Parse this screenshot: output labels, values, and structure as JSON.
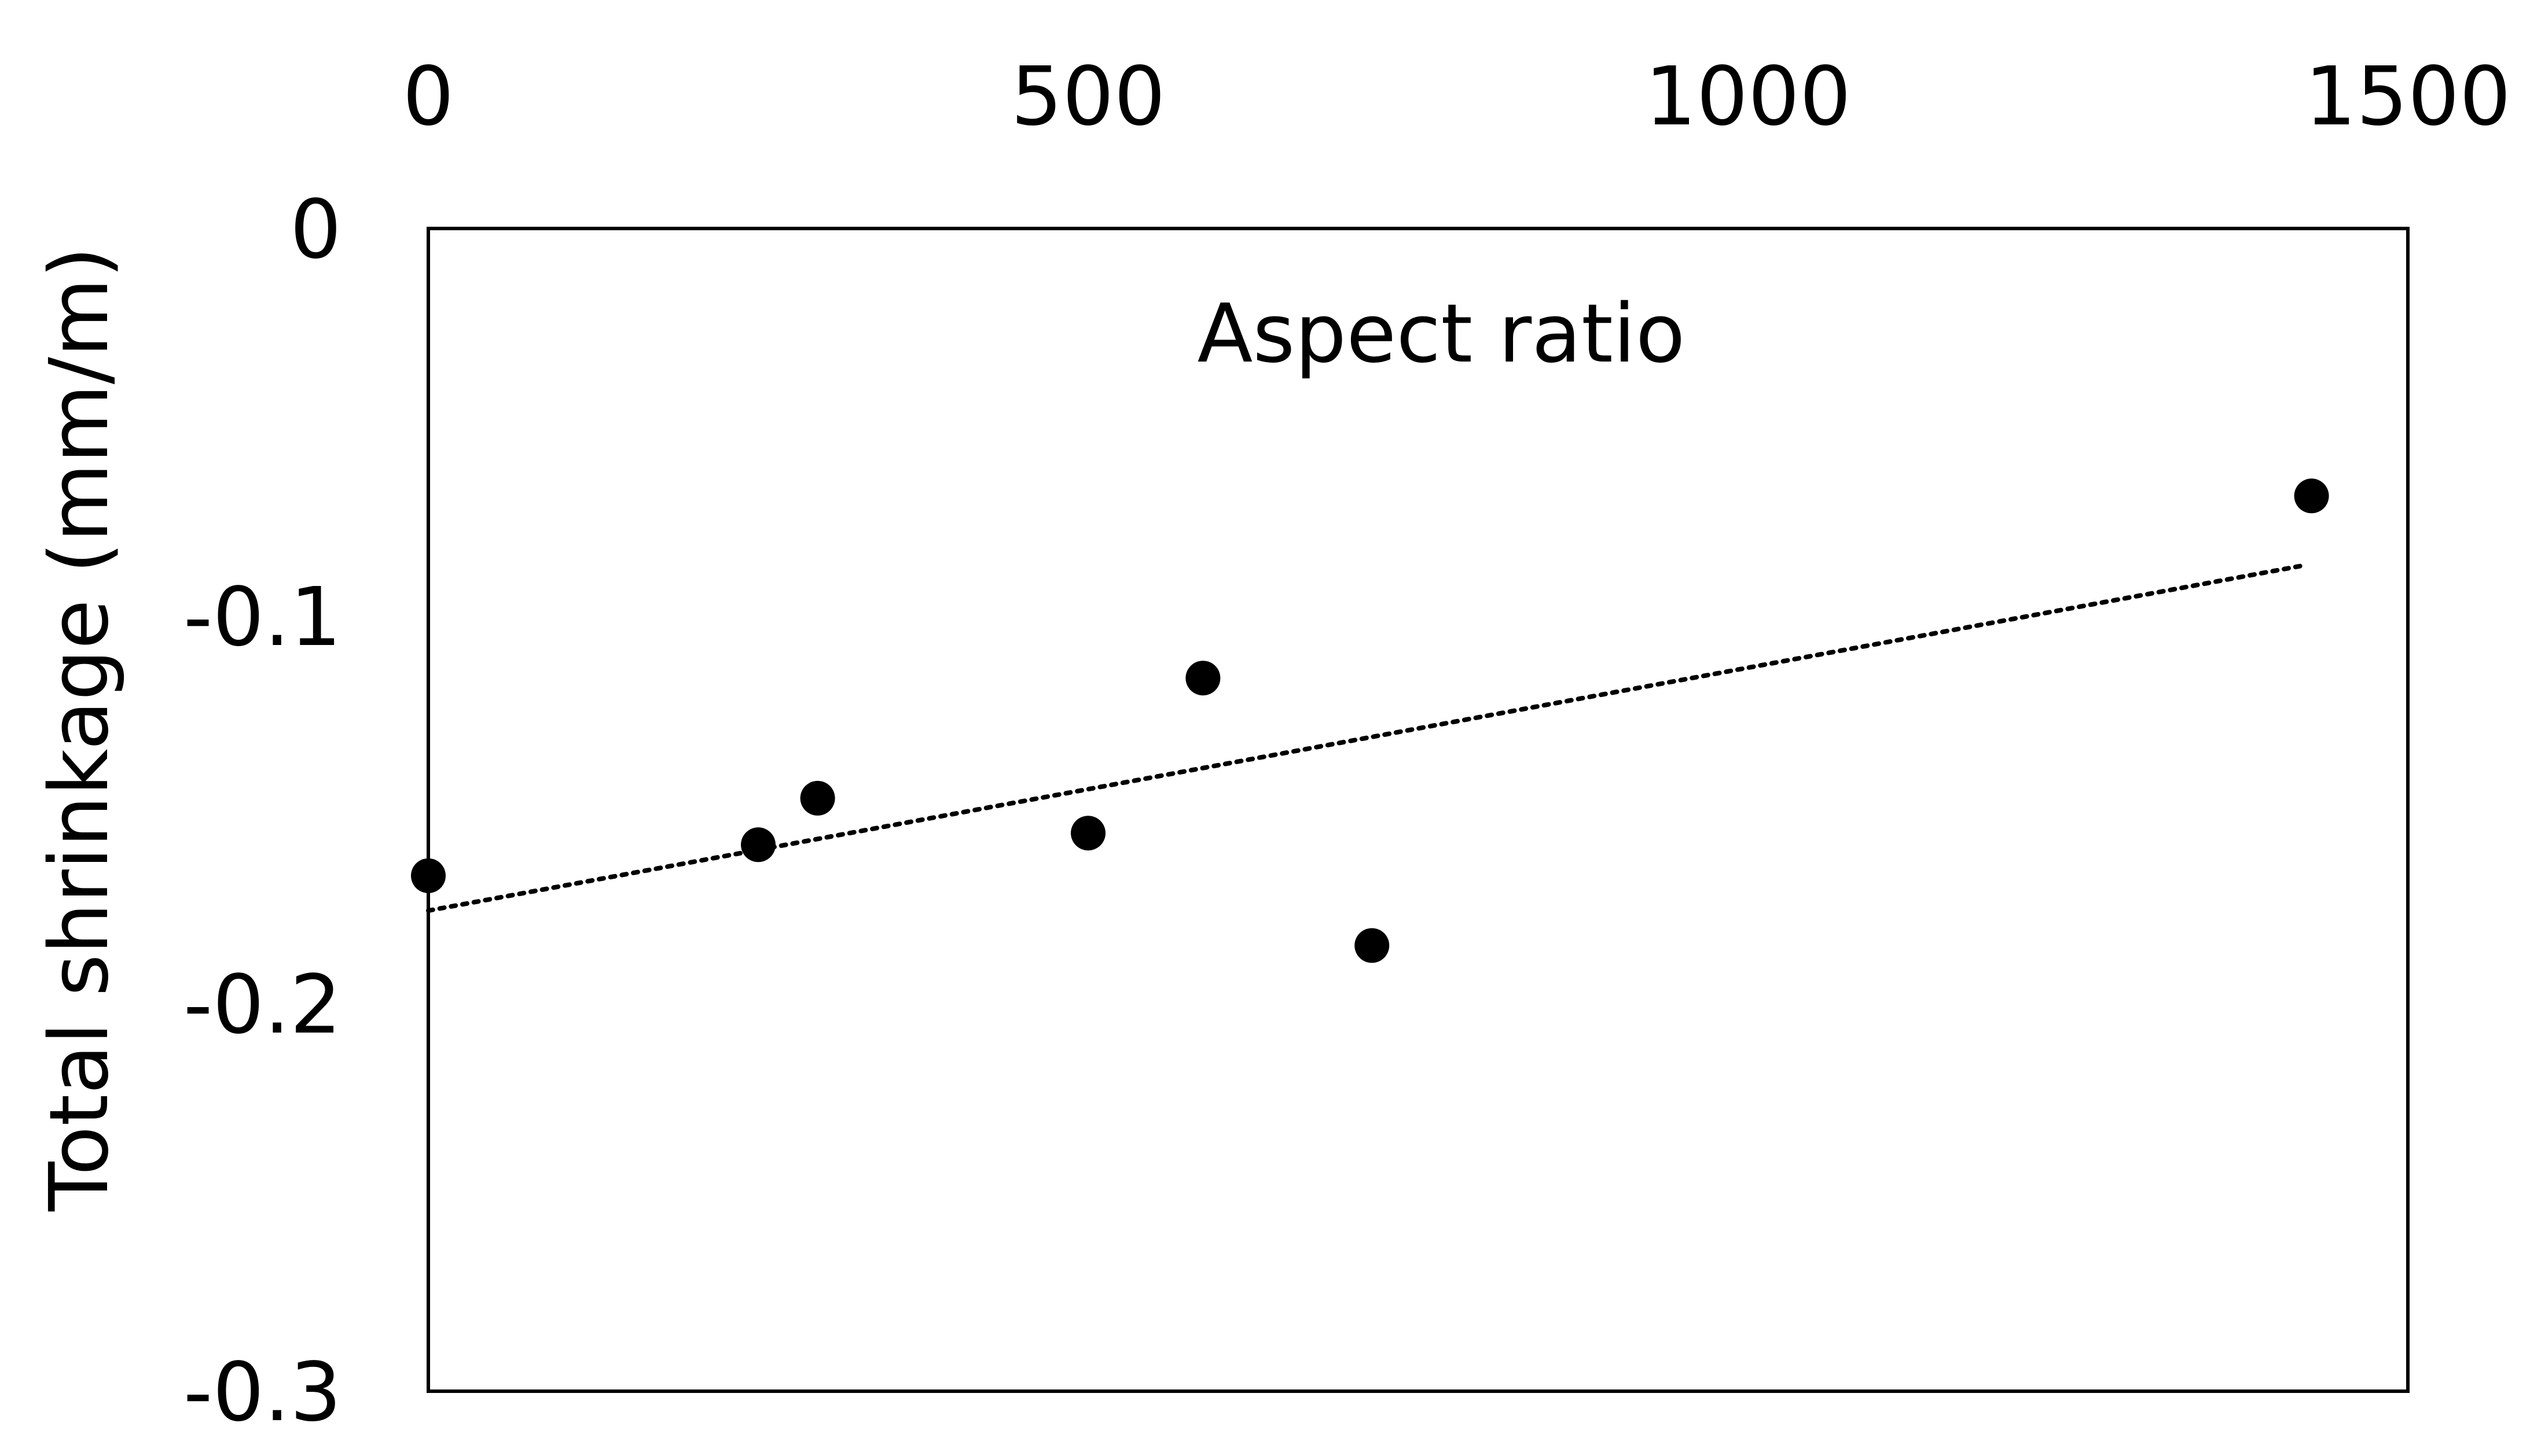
{
  "chart_data": {
    "type": "scatter",
    "title": "",
    "xlabel": "Aspect ratio",
    "ylabel": "Total shrinkage (mm/m)",
    "xlim": [
      0,
      1500
    ],
    "ylim": [
      -0.3,
      0
    ],
    "x_ticks": [
      0,
      500,
      1000,
      1500
    ],
    "x_tick_labels": [
      "0",
      "500",
      "1000",
      "1500"
    ],
    "y_ticks": [
      0,
      -0.1,
      -0.2,
      -0.3
    ],
    "y_tick_labels": [
      "0",
      "-0.1",
      "-0.2",
      "-0.3"
    ],
    "x_axis_position": "top",
    "grid": false,
    "legend": "none",
    "series": [
      {
        "points": [
          {
            "x": 0,
            "y": -0.167
          },
          {
            "x": 250,
            "y": -0.159
          },
          {
            "x": 295,
            "y": -0.147
          },
          {
            "x": 500,
            "y": -0.156
          },
          {
            "x": 587,
            "y": -0.116
          },
          {
            "x": 715,
            "y": -0.185
          },
          {
            "x": 1427,
            "y": -0.069
          }
        ],
        "color": "#000000",
        "trendline": {
          "type": "linear",
          "style": "dotted",
          "x": [
            0,
            1420
          ],
          "y": [
            -0.176,
            -0.087
          ]
        }
      }
    ]
  }
}
